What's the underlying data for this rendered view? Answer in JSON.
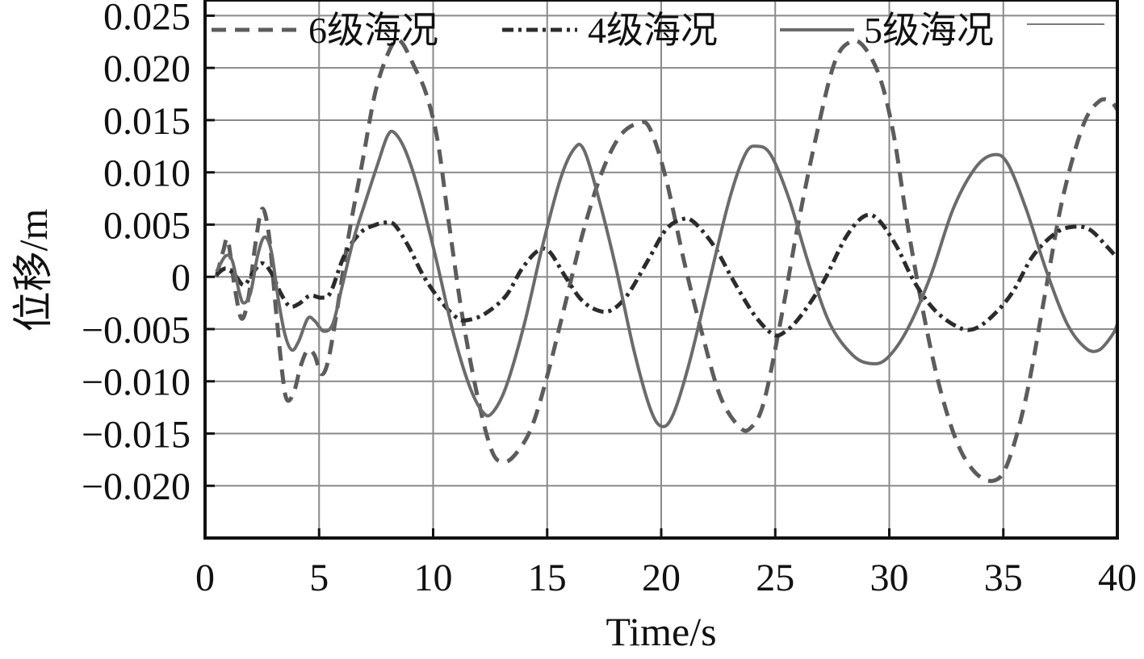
{
  "chart_data": {
    "type": "line",
    "xlabel": "Time/s",
    "ylabel": "位移/m",
    "xlim": [
      0,
      40
    ],
    "ylim": [
      -0.025,
      0.0265
    ],
    "grid": true,
    "legend_position": "top",
    "x_ticks": [
      0,
      5,
      10,
      15,
      20,
      25,
      30,
      35,
      40
    ],
    "x_tick_labels": [
      "0",
      "5",
      "10",
      "15",
      "20",
      "25",
      "30",
      "35",
      "40"
    ],
    "y_ticks": [
      0.025,
      0.02,
      0.015,
      0.01,
      0.005,
      0,
      -0.005,
      -0.01,
      -0.015,
      -0.02
    ],
    "y_tick_labels": [
      "0.025",
      "0.020",
      "0.015",
      "0.010",
      "0.005",
      "0",
      "−0.005",
      "−0.010",
      "−0.015",
      "−0.020"
    ],
    "series": [
      {
        "name": "6级海况",
        "style": "dashed",
        "color": "#5c5c5c",
        "points": [
          [
            0.5,
            0.0
          ],
          [
            0.8,
            0.0025
          ],
          [
            1.0,
            0.0035
          ],
          [
            1.3,
            -0.001
          ],
          [
            1.6,
            -0.004
          ],
          [
            1.9,
            -0.002
          ],
          [
            2.2,
            0.003
          ],
          [
            2.5,
            0.0065
          ],
          [
            2.8,
            0.004
          ],
          [
            3.1,
            -0.003
          ],
          [
            3.4,
            -0.0095
          ],
          [
            3.6,
            -0.0118
          ],
          [
            3.9,
            -0.011
          ],
          [
            4.2,
            -0.0085
          ],
          [
            4.5,
            -0.007
          ],
          [
            4.8,
            -0.0075
          ],
          [
            5.1,
            -0.0093
          ],
          [
            5.4,
            -0.008
          ],
          [
            5.8,
            -0.003
          ],
          [
            6.3,
            0.004
          ],
          [
            6.9,
            0.011
          ],
          [
            7.5,
            0.018
          ],
          [
            8.2,
            0.0222
          ],
          [
            8.6,
            0.0225
          ],
          [
            9.2,
            0.02
          ],
          [
            9.7,
            0.0175
          ],
          [
            10.2,
            0.013
          ],
          [
            10.7,
            0.005
          ],
          [
            11.3,
            -0.004
          ],
          [
            12.0,
            -0.012
          ],
          [
            12.6,
            -0.0168
          ],
          [
            13.1,
            -0.0177
          ],
          [
            13.6,
            -0.017
          ],
          [
            14.3,
            -0.0145
          ],
          [
            15.0,
            -0.0095
          ],
          [
            15.8,
            -0.0025
          ],
          [
            16.6,
            0.0045
          ],
          [
            17.4,
            0.01
          ],
          [
            18.2,
            0.0135
          ],
          [
            19.0,
            0.0147
          ],
          [
            19.5,
            0.0142
          ],
          [
            20.2,
            0.0095
          ],
          [
            21.0,
            0.0015
          ],
          [
            21.8,
            -0.0055
          ],
          [
            22.6,
            -0.0115
          ],
          [
            23.4,
            -0.0143
          ],
          [
            23.9,
            -0.0145
          ],
          [
            24.5,
            -0.012
          ],
          [
            25.3,
            -0.0035
          ],
          [
            26.0,
            0.005
          ],
          [
            26.8,
            0.0135
          ],
          [
            27.6,
            0.0205
          ],
          [
            28.3,
            0.0225
          ],
          [
            28.9,
            0.022
          ],
          [
            29.6,
            0.019
          ],
          [
            30.2,
            0.0135
          ],
          [
            30.8,
            0.005
          ],
          [
            31.5,
            -0.0035
          ],
          [
            32.2,
            -0.0105
          ],
          [
            33.0,
            -0.016
          ],
          [
            33.8,
            -0.0188
          ],
          [
            34.6,
            -0.0195
          ],
          [
            35.2,
            -0.0178
          ],
          [
            36.0,
            -0.0115
          ],
          [
            36.8,
            -0.002
          ],
          [
            37.6,
            0.0075
          ],
          [
            38.5,
            0.0145
          ],
          [
            39.2,
            0.0168
          ],
          [
            39.7,
            0.0168
          ],
          [
            40.0,
            0.016
          ]
        ]
      },
      {
        "name": "4级海况",
        "style": "dash-dot",
        "color": "#2b2b2b",
        "points": [
          [
            0.5,
            0.0002
          ],
          [
            0.9,
            0.0008
          ],
          [
            1.3,
            0.0002
          ],
          [
            1.7,
            -0.0008
          ],
          [
            2.1,
            0.0004
          ],
          [
            2.5,
            0.0013
          ],
          [
            2.9,
            0.0004
          ],
          [
            3.3,
            -0.0015
          ],
          [
            3.7,
            -0.0028
          ],
          [
            4.1,
            -0.0026
          ],
          [
            4.6,
            -0.0018
          ],
          [
            5.1,
            -0.002
          ],
          [
            5.5,
            -0.0015
          ],
          [
            6.1,
            0.002
          ],
          [
            6.8,
            0.0042
          ],
          [
            7.5,
            0.005
          ],
          [
            7.9,
            0.0052
          ],
          [
            8.3,
            0.005
          ],
          [
            8.9,
            0.003
          ],
          [
            9.6,
            0.0
          ],
          [
            10.4,
            -0.0025
          ],
          [
            11.1,
            -0.004
          ],
          [
            11.6,
            -0.0041
          ],
          [
            12.3,
            -0.0035
          ],
          [
            13.2,
            -0.0018
          ],
          [
            13.9,
            0.0008
          ],
          [
            14.6,
            0.0025
          ],
          [
            15.1,
            0.0024
          ],
          [
            15.8,
            0.0
          ],
          [
            16.5,
            -0.0022
          ],
          [
            17.2,
            -0.0032
          ],
          [
            17.8,
            -0.0032
          ],
          [
            18.5,
            -0.0018
          ],
          [
            19.4,
            0.0015
          ],
          [
            20.2,
            0.0045
          ],
          [
            20.9,
            0.0055
          ],
          [
            21.4,
            0.0053
          ],
          [
            22.3,
            0.003
          ],
          [
            23.2,
            -0.0005
          ],
          [
            24.1,
            -0.0037
          ],
          [
            24.9,
            -0.0055
          ],
          [
            25.4,
            -0.0053
          ],
          [
            26.1,
            -0.0038
          ],
          [
            27.1,
            -0.0005
          ],
          [
            28.1,
            0.0038
          ],
          [
            28.9,
            0.0058
          ],
          [
            29.5,
            0.0055
          ],
          [
            30.3,
            0.003
          ],
          [
            31.1,
            -0.0005
          ],
          [
            32.0,
            -0.0032
          ],
          [
            33.0,
            -0.0048
          ],
          [
            33.7,
            -0.005
          ],
          [
            34.5,
            -0.0038
          ],
          [
            35.4,
            -0.0015
          ],
          [
            36.3,
            0.002
          ],
          [
            37.3,
            0.0042
          ],
          [
            38.1,
            0.0048
          ],
          [
            38.8,
            0.0045
          ],
          [
            39.5,
            0.003
          ],
          [
            40.0,
            0.0018
          ]
        ]
      },
      {
        "name": "5级海况",
        "style": "solid",
        "color": "#6b6b6b",
        "points": [
          [
            0.5,
            0.0005
          ],
          [
            0.9,
            0.002
          ],
          [
            1.2,
            0.0015
          ],
          [
            1.5,
            -0.0015
          ],
          [
            1.7,
            -0.0025
          ],
          [
            2.0,
            -0.0015
          ],
          [
            2.3,
            0.002
          ],
          [
            2.6,
            0.0038
          ],
          [
            2.9,
            0.0025
          ],
          [
            3.2,
            -0.002
          ],
          [
            3.5,
            -0.0055
          ],
          [
            3.8,
            -0.007
          ],
          [
            4.1,
            -0.0062
          ],
          [
            4.5,
            -0.004
          ],
          [
            4.8,
            -0.0042
          ],
          [
            5.2,
            -0.0052
          ],
          [
            5.6,
            -0.0045
          ],
          [
            6.0,
            -0.001
          ],
          [
            6.5,
            0.0035
          ],
          [
            7.0,
            0.007
          ],
          [
            7.6,
            0.011
          ],
          [
            8.0,
            0.0135
          ],
          [
            8.3,
            0.0138
          ],
          [
            8.8,
            0.012
          ],
          [
            9.4,
            0.008
          ],
          [
            10.1,
            0.002
          ],
          [
            10.9,
            -0.0055
          ],
          [
            11.6,
            -0.0105
          ],
          [
            12.2,
            -0.013
          ],
          [
            12.6,
            -0.013
          ],
          [
            13.2,
            -0.0105
          ],
          [
            14.0,
            -0.0045
          ],
          [
            14.8,
            0.003
          ],
          [
            15.6,
            0.0095
          ],
          [
            16.2,
            0.0123
          ],
          [
            16.6,
            0.0122
          ],
          [
            17.2,
            0.008
          ],
          [
            18.0,
            0.001
          ],
          [
            18.8,
            -0.007
          ],
          [
            19.5,
            -0.0125
          ],
          [
            20.0,
            -0.0143
          ],
          [
            20.5,
            -0.0133
          ],
          [
            21.2,
            -0.0085
          ],
          [
            22.1,
            -0.0005
          ],
          [
            23.0,
            0.0075
          ],
          [
            23.7,
            0.0118
          ],
          [
            24.2,
            0.0125
          ],
          [
            24.8,
            0.0117
          ],
          [
            25.6,
            0.0075
          ],
          [
            26.5,
            0.001
          ],
          [
            27.4,
            -0.0045
          ],
          [
            28.4,
            -0.0075
          ],
          [
            29.2,
            -0.0083
          ],
          [
            29.9,
            -0.0078
          ],
          [
            30.8,
            -0.005
          ],
          [
            31.8,
            0.0
          ],
          [
            32.8,
            0.0065
          ],
          [
            33.8,
            0.0105
          ],
          [
            34.6,
            0.0117
          ],
          [
            35.2,
            0.0108
          ],
          [
            36.0,
            0.0065
          ],
          [
            36.9,
            0.0005
          ],
          [
            37.8,
            -0.0045
          ],
          [
            38.6,
            -0.0068
          ],
          [
            39.2,
            -0.007
          ],
          [
            39.8,
            -0.0055
          ],
          [
            40.0,
            -0.0045
          ]
        ]
      }
    ]
  }
}
